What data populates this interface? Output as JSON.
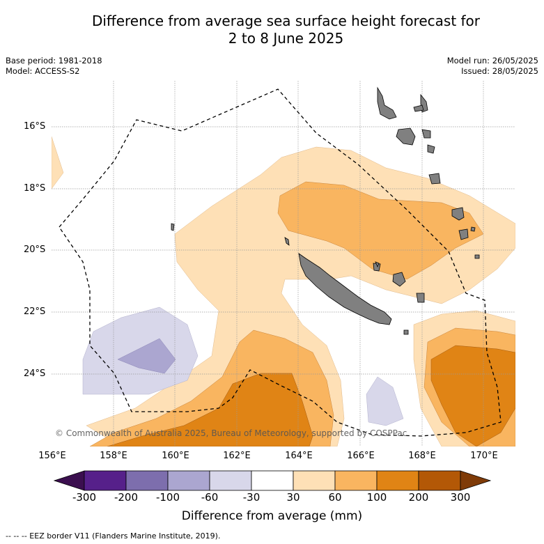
{
  "header": {
    "title_line1": "Difference from average sea surface height forecast for",
    "title_line2": "2 to 8 June 2025",
    "base_period": "Base period: 1981-2018",
    "model": "Model: ACCESS-S2",
    "model_run": "Model run: 26/05/2025",
    "issued": "Issued: 28/05/2025"
  },
  "map": {
    "lon_labels": [
      "156°E",
      "158°E",
      "160°E",
      "162°E",
      "164°E",
      "166°E",
      "168°E",
      "170°E"
    ],
    "lat_labels": [
      "16°S",
      "18°S",
      "20°S",
      "22°S",
      "24°S"
    ],
    "land_color": "#808080",
    "copyright": "© Commonwealth of Australia 2025, Bureau of Meteorology, supported by COSPPac"
  },
  "colorbar": {
    "ticks": [
      "-300",
      "-200",
      "-100",
      "-60",
      "-30",
      "30",
      "60",
      "100",
      "200",
      "300"
    ],
    "colors": [
      "#3b0f4f",
      "#56208a",
      "#7d6ead",
      "#aba6d0",
      "#d8d7ea",
      "#ffffff",
      "#fee0b6",
      "#f9b560",
      "#e08415",
      "#b35806",
      "#7f3b08"
    ],
    "label": "Difference from average (mm)"
  },
  "footer": {
    "eez_note": "-- -- -- EEZ border V11 (Flanders Marine Institute, 2019)."
  }
}
